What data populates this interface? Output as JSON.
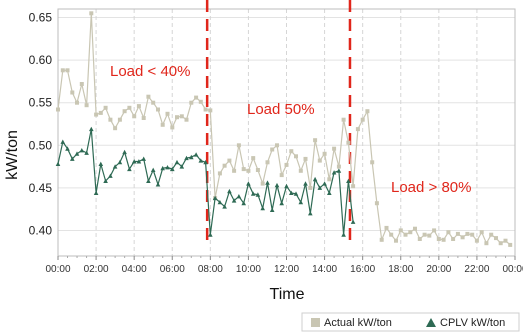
{
  "chart_data": {
    "type": "line",
    "title": "",
    "xlabel": "Time",
    "ylabel": "kW/ton",
    "ylim": [
      0.37,
      0.66
    ],
    "xlim": [
      "00:00",
      "24:00"
    ],
    "yticks": [
      "0.40",
      "0.45",
      "0.50",
      "0.55",
      "0.60",
      "0.65"
    ],
    "xticks": [
      "00:00",
      "02:00",
      "04:00",
      "06:00",
      "08:00",
      "10:00",
      "12:00",
      "14:00",
      "16:00",
      "18:00",
      "20:00",
      "22:00",
      "00:00"
    ],
    "grid": true,
    "legend_position": "bottom-right",
    "annotations": [
      {
        "text": "Load < 40%",
        "color": "#e0261b"
      },
      {
        "text": "Load 50%",
        "color": "#e0261b"
      },
      {
        "text": "Load > 80%",
        "color": "#e0261b"
      }
    ],
    "dividers": [
      "07:50",
      "15:20"
    ],
    "divider_color": "#e0261b",
    "series": [
      {
        "name": "Actual kW/ton",
        "color": "#c9c6b3",
        "marker": "square",
        "x": [
          "00:00",
          "00:15",
          "00:30",
          "00:45",
          "01:00",
          "01:15",
          "01:30",
          "01:45",
          "02:00",
          "02:15",
          "02:30",
          "02:45",
          "03:00",
          "03:15",
          "03:30",
          "03:45",
          "04:00",
          "04:15",
          "04:30",
          "04:45",
          "05:00",
          "05:15",
          "05:30",
          "05:45",
          "06:00",
          "06:15",
          "06:30",
          "06:45",
          "07:00",
          "07:15",
          "07:30",
          "07:45",
          "08:00",
          "08:15",
          "08:30",
          "08:45",
          "09:00",
          "09:15",
          "09:30",
          "09:45",
          "10:00",
          "10:15",
          "10:30",
          "10:45",
          "11:00",
          "11:15",
          "11:30",
          "11:45",
          "12:00",
          "12:15",
          "12:30",
          "12:45",
          "13:00",
          "13:15",
          "13:30",
          "13:45",
          "14:00",
          "14:15",
          "14:30",
          "14:45",
          "15:00",
          "15:15",
          "15:30",
          "15:45",
          "16:00",
          "16:15",
          "16:30",
          "16:45",
          "17:00",
          "17:15",
          "17:30",
          "17:45",
          "18:00",
          "18:15",
          "18:30",
          "18:45",
          "19:00",
          "19:15",
          "19:30",
          "19:45",
          "20:00",
          "20:15",
          "20:30",
          "20:45",
          "21:00",
          "21:15",
          "21:30",
          "21:45",
          "22:00",
          "22:15",
          "22:30",
          "22:45",
          "23:00",
          "23:15",
          "23:30",
          "23:45"
        ],
        "y": [
          0.542,
          0.588,
          0.588,
          0.562,
          0.55,
          0.572,
          0.547,
          0.655,
          0.536,
          0.538,
          0.544,
          0.53,
          0.52,
          0.53,
          0.54,
          0.544,
          0.534,
          0.546,
          0.532,
          0.557,
          0.55,
          0.542,
          0.524,
          0.537,
          0.521,
          0.533,
          0.534,
          0.53,
          0.55,
          0.556,
          0.551,
          0.542,
          0.541,
          0.438,
          0.467,
          0.476,
          0.482,
          0.47,
          0.5,
          0.472,
          0.47,
          0.485,
          0.471,
          0.455,
          0.48,
          0.495,
          0.5,
          0.465,
          0.477,
          0.493,
          0.487,
          0.47,
          0.484,
          0.45,
          0.506,
          0.482,
          0.49,
          0.46,
          0.496,
          0.475,
          0.53,
          0.503,
          0.452,
          0.519,
          0.53,
          0.54,
          0.48,
          0.432,
          0.389,
          0.403,
          0.395,
          0.388,
          0.4,
          0.395,
          0.398,
          0.402,
          0.39,
          0.395,
          0.394,
          0.4,
          0.39,
          0.389,
          0.398,
          0.39,
          0.396,
          0.392,
          0.396,
          0.395,
          0.388,
          0.398,
          0.385,
          0.395,
          0.391,
          0.385,
          0.388,
          0.383
        ]
      },
      {
        "name": "CPLV kW/ton",
        "color": "#2e6a54",
        "marker": "triangle",
        "x": [
          "00:00",
          "00:15",
          "00:30",
          "00:45",
          "01:00",
          "01:15",
          "01:30",
          "01:45",
          "02:00",
          "02:15",
          "02:30",
          "02:45",
          "03:00",
          "03:15",
          "03:30",
          "03:45",
          "04:00",
          "04:15",
          "04:30",
          "04:45",
          "05:00",
          "05:15",
          "05:30",
          "05:45",
          "06:00",
          "06:15",
          "06:30",
          "06:45",
          "07:00",
          "07:15",
          "07:30",
          "07:45",
          "08:00",
          "08:15",
          "08:30",
          "08:45",
          "09:00",
          "09:15",
          "09:30",
          "09:45",
          "10:00",
          "10:15",
          "10:30",
          "10:45",
          "11:00",
          "11:15",
          "11:30",
          "11:45",
          "12:00",
          "12:15",
          "12:30",
          "12:45",
          "13:00",
          "13:15",
          "13:30",
          "13:45",
          "14:00",
          "14:15",
          "14:30",
          "14:45",
          "15:00",
          "15:15",
          "15:30"
        ],
        "y": [
          0.478,
          0.504,
          0.496,
          0.484,
          0.49,
          0.494,
          0.491,
          0.519,
          0.444,
          0.478,
          0.458,
          0.464,
          0.475,
          0.48,
          0.492,
          0.472,
          0.481,
          0.481,
          0.484,
          0.458,
          0.471,
          0.454,
          0.473,
          0.474,
          0.472,
          0.48,
          0.475,
          0.485,
          0.486,
          0.489,
          0.482,
          0.48,
          0.395,
          0.438,
          0.433,
          0.428,
          0.446,
          0.435,
          0.44,
          0.432,
          0.455,
          0.443,
          0.442,
          0.426,
          0.456,
          0.424,
          0.453,
          0.432,
          0.452,
          0.444,
          0.443,
          0.433,
          0.455,
          0.42,
          0.46,
          0.45,
          0.455,
          0.444,
          0.468,
          0.47,
          0.395,
          0.458,
          0.41
        ]
      }
    ]
  }
}
